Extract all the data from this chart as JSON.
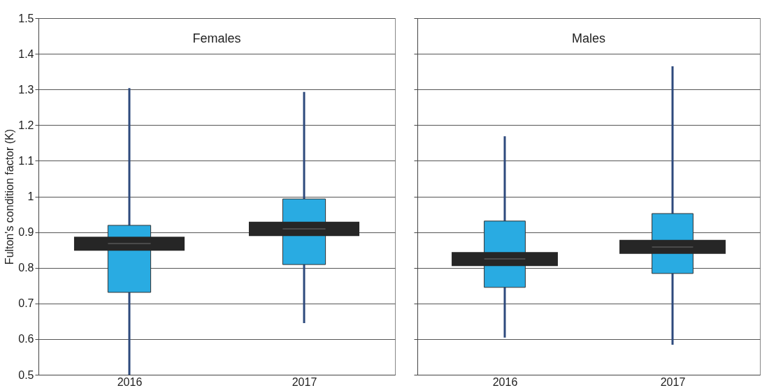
{
  "chart_data": [
    {
      "type": "box",
      "title": "Females",
      "ylabel": "Fulton's condition factor (K)",
      "categories": [
        "2016",
        "2017"
      ],
      "series": [
        {
          "color": "#29abe2",
          "boxes": [
            {
              "low": 0.5,
              "q1": 0.731,
              "median": 0.868,
              "q3": 0.919,
              "high": 1.304
            },
            {
              "low": 0.645,
              "q1": 0.809,
              "median": 0.909,
              "q3": 0.993,
              "high": 1.293
            }
          ]
        },
        {
          "type": "bar",
          "color": "#262626",
          "base": [
            0.848,
            0.889
          ],
          "values": [
            0.039,
            0.04
          ]
        }
      ],
      "ylim": [
        0.5,
        1.5
      ],
      "yticks": [
        0.5,
        0.6,
        0.7,
        0.8,
        0.9,
        1,
        1.1,
        1.2,
        1.3,
        1.4,
        1.5
      ],
      "grid": "y"
    },
    {
      "type": "box",
      "title": "Males",
      "categories": [
        "2016",
        "2017"
      ],
      "series": [
        {
          "color": "#29abe2",
          "boxes": [
            {
              "low": 0.604,
              "q1": 0.745,
              "median": 0.825,
              "q3": 0.931,
              "high": 1.169
            },
            {
              "low": 0.584,
              "q1": 0.784,
              "median": 0.858,
              "q3": 0.952,
              "high": 1.365
            }
          ]
        },
        {
          "type": "bar",
          "color": "#262626",
          "base": [
            0.805,
            0.839
          ],
          "values": [
            0.039,
            0.039
          ]
        }
      ],
      "ylim": [
        0.5,
        1.5
      ],
      "yticks": [
        0.5,
        0.6,
        0.7,
        0.8,
        0.9,
        1,
        1.1,
        1.2,
        1.3,
        1.4,
        1.5
      ],
      "grid": "y",
      "tick_labels": "x"
    }
  ]
}
